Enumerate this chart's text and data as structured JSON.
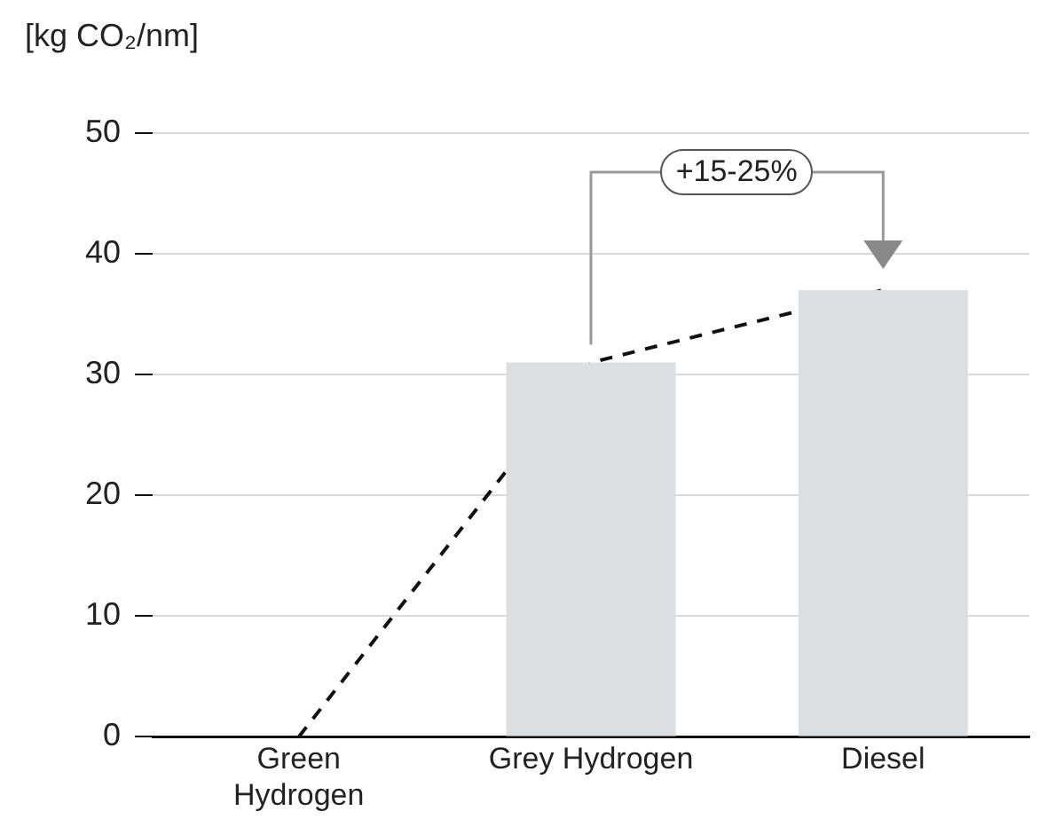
{
  "chart_data": {
    "type": "bar",
    "ylabel": "[kg CO₂/nm]",
    "categories": [
      "Green Hydrogen",
      "Grey Hydrogen",
      "Diesel"
    ],
    "series": [
      {
        "color": "#dcdfe2",
        "values": [
          0,
          31,
          37
        ]
      },
      {
        "type": "line",
        "color": "#111111",
        "line_style": "dashed",
        "marker": "none",
        "values": [
          0,
          31,
          37
        ]
      }
    ],
    "ylim": [
      0,
      50
    ],
    "yticks": [
      0,
      10,
      20,
      30,
      40,
      50
    ],
    "grid": "y",
    "legend": false,
    "annotations": [
      "+15-25%"
    ]
  }
}
